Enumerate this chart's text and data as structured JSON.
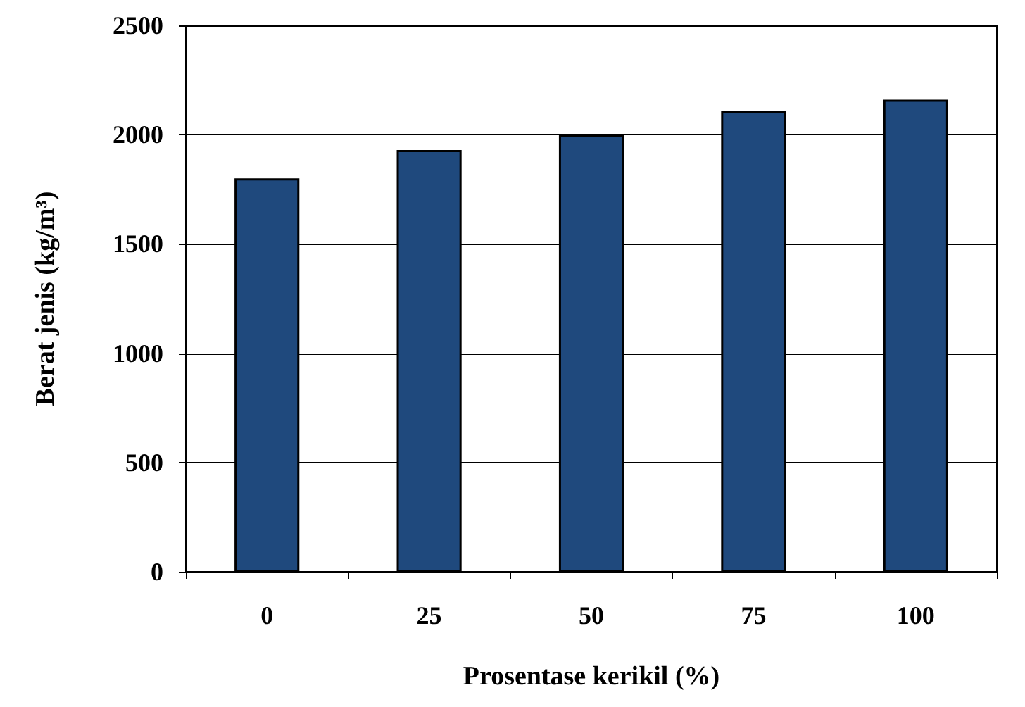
{
  "chart_data": {
    "type": "bar",
    "xlabel": "Prosentase kerikil (%)",
    "ylabel": "Berat jenis (kg/m³)",
    "categories": [
      "0",
      "25",
      "50",
      "75",
      "100"
    ],
    "values": [
      1800,
      1930,
      2000,
      2110,
      2160
    ],
    "color": "#1f497d",
    "ylim": [
      0,
      2500
    ],
    "yticks": [
      0,
      500,
      1000,
      1500,
      2000,
      2500
    ],
    "grid": "y"
  }
}
